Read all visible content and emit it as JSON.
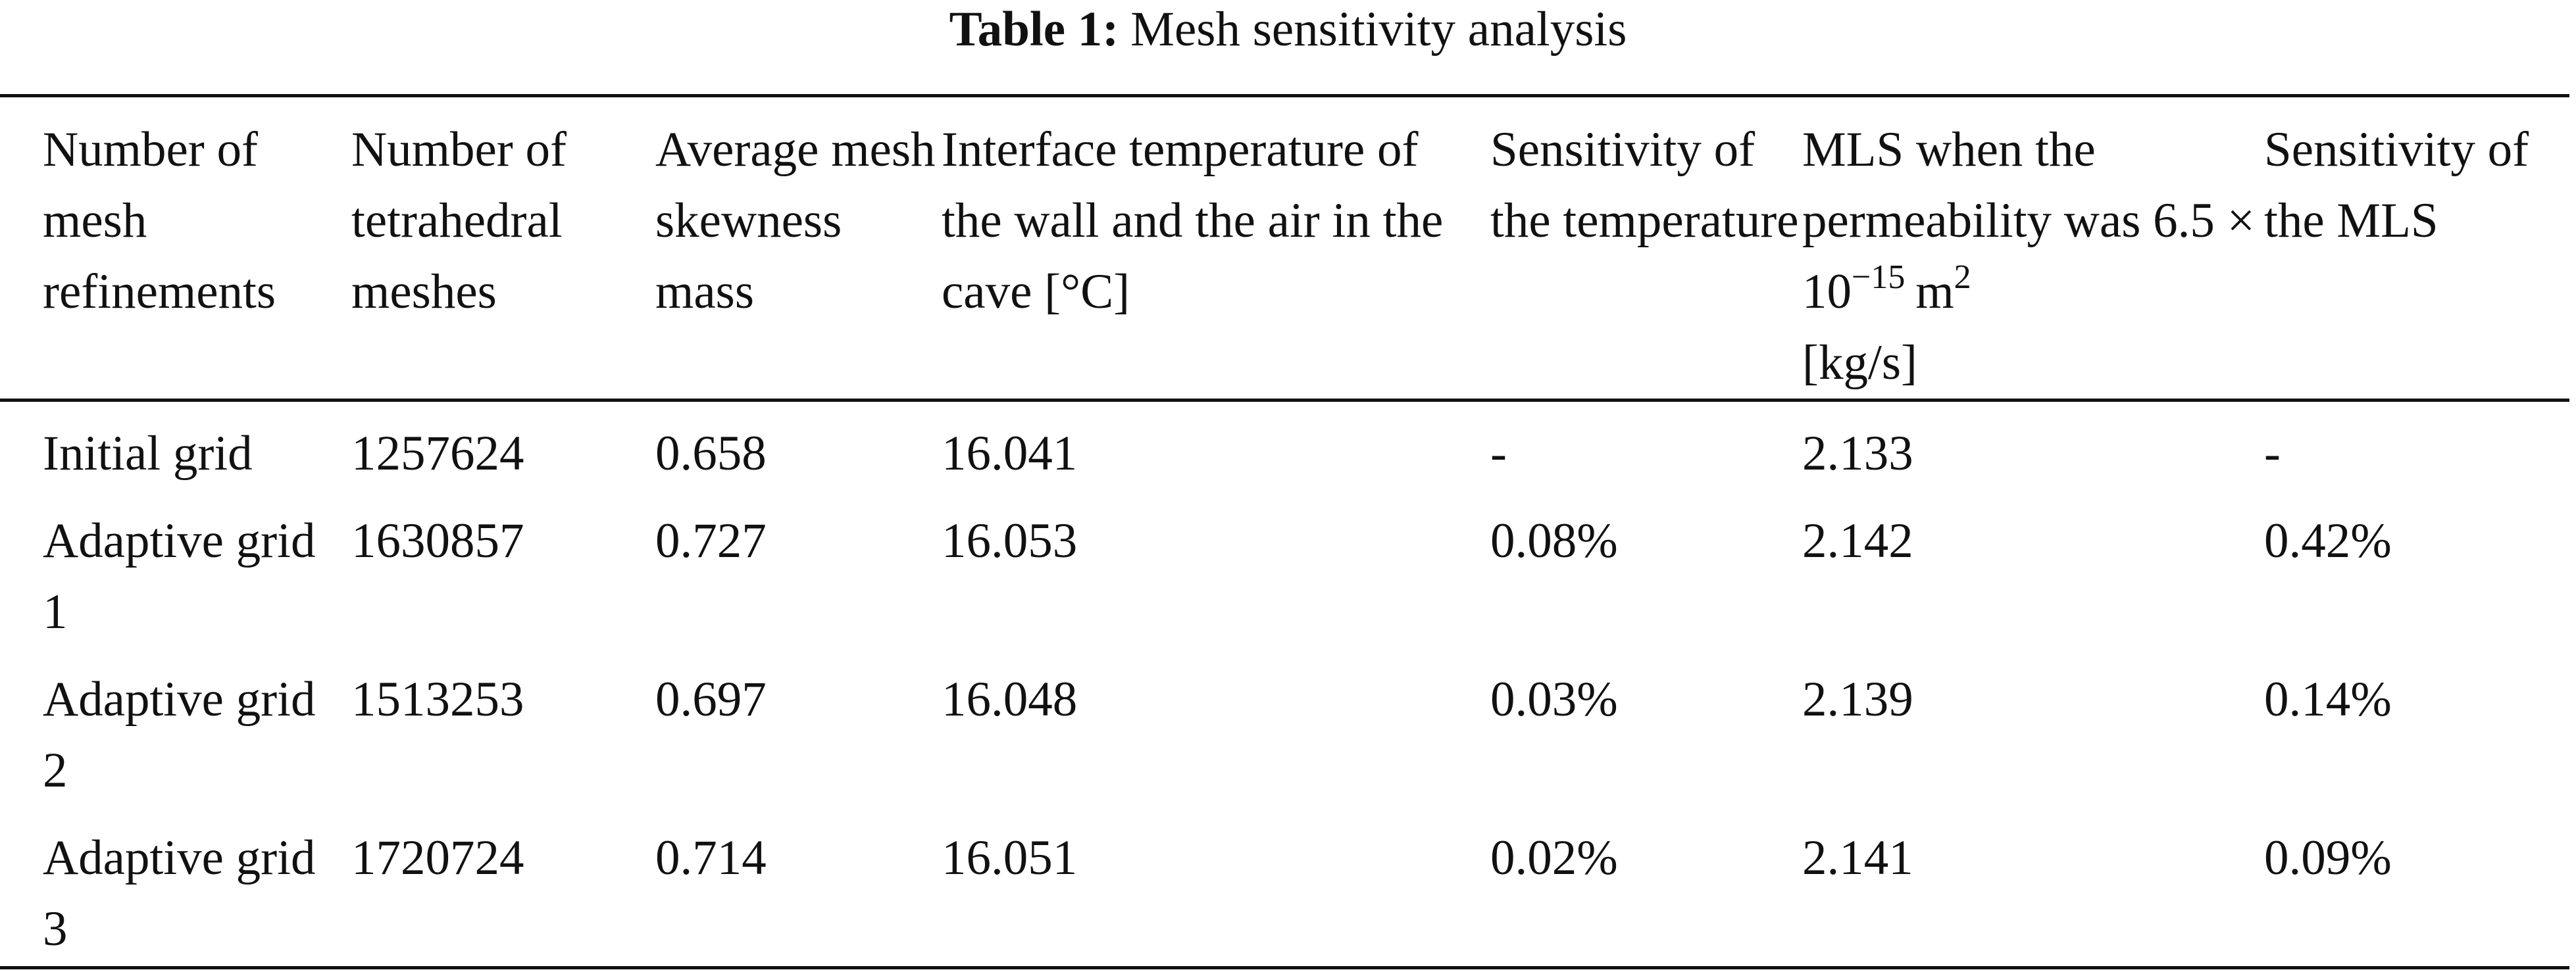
{
  "title": {
    "label": "Table 1:",
    "text": "Mesh sensitivity analysis"
  },
  "table": {
    "header": [
      "Number of mesh refinements",
      "Number of tetrahedral meshes",
      "Average mesh skewness mass",
      "Interface temperature of the wall and the air in the cave [°C]",
      "Sensitivity of the temperature",
      {
        "text": "MLS when the permeability was 6.5 × 10",
        "exponent": "−15",
        "unit": "m",
        "unit_exponent": "2",
        "tail": "[kg/s]"
      },
      "Sensitivity of the MLS"
    ],
    "rows": [
      [
        "Initial grid",
        "1257624",
        "0.658",
        "16.041",
        "-",
        "2.133",
        "-"
      ],
      [
        "Adaptive grid 1",
        "1630857",
        "0.727",
        "16.053",
        "0.08%",
        "2.142",
        "0.42%"
      ],
      [
        "Adaptive grid 2",
        "1513253",
        "0.697",
        "16.048",
        "0.03%",
        "2.139",
        "0.14%"
      ],
      [
        "Adaptive grid 3",
        "1720724",
        "0.714",
        "16.051",
        "0.02%",
        "2.141",
        "0.09%"
      ]
    ]
  }
}
